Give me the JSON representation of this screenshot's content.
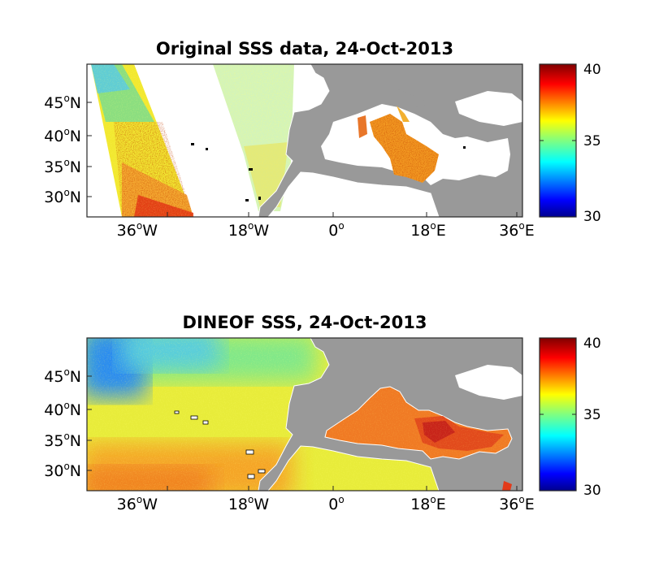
{
  "panels": [
    {
      "title": "Original SSS data, 24-Oct-2013",
      "field": "original",
      "x_ticks": [
        {
          "deg": "36",
          "sup": "o",
          "dir": "W",
          "lon": -36
        },
        {
          "deg": "18",
          "sup": "o",
          "dir": "W",
          "lon": -18
        },
        {
          "deg": "0",
          "sup": "o",
          "dir": "",
          "lon": 0
        },
        {
          "deg": "18",
          "sup": "o",
          "dir": "E",
          "lon": 18
        },
        {
          "deg": "36",
          "sup": "o",
          "dir": "E",
          "lon": 36
        }
      ],
      "y_ticks": [
        {
          "deg": "45",
          "sup": "o",
          "dir": "N",
          "lat": 45
        },
        {
          "deg": "40",
          "sup": "o",
          "dir": "N",
          "lat": 40
        },
        {
          "deg": "35",
          "sup": "o",
          "dir": "N",
          "lat": 35
        },
        {
          "deg": "30",
          "sup": "o",
          "dir": "N",
          "lat": 30
        }
      ],
      "colorbar": {
        "ticks": [
          "40",
          "35",
          "30"
        ],
        "min": 30,
        "max": 40,
        "colormap": "jet"
      }
    },
    {
      "title": "DINEOF SSS, 24-Oct-2013",
      "field": "reconstructed",
      "x_ticks": [
        {
          "deg": "36",
          "sup": "o",
          "dir": "W",
          "lon": -36
        },
        {
          "deg": "18",
          "sup": "o",
          "dir": "W",
          "lon": -18
        },
        {
          "deg": "0",
          "sup": "o",
          "dir": "",
          "lon": 0
        },
        {
          "deg": "18",
          "sup": "o",
          "dir": "E",
          "lon": 18
        },
        {
          "deg": "36",
          "sup": "o",
          "dir": "E",
          "lon": 36
        }
      ],
      "y_ticks": [
        {
          "deg": "45",
          "sup": "o",
          "dir": "N",
          "lat": 45
        },
        {
          "deg": "40",
          "sup": "o",
          "dir": "N",
          "lat": 40
        },
        {
          "deg": "35",
          "sup": "o",
          "dir": "N",
          "lat": 35
        },
        {
          "deg": "30",
          "sup": "o",
          "dir": "N",
          "lat": 30
        }
      ],
      "colorbar": {
        "ticks": [
          "40",
          "35",
          "30"
        ],
        "min": 30,
        "max": 40,
        "colormap": "jet"
      }
    }
  ],
  "colors": {
    "land": "#999999",
    "missing": "#ffffff",
    "axis": "#262626"
  }
}
